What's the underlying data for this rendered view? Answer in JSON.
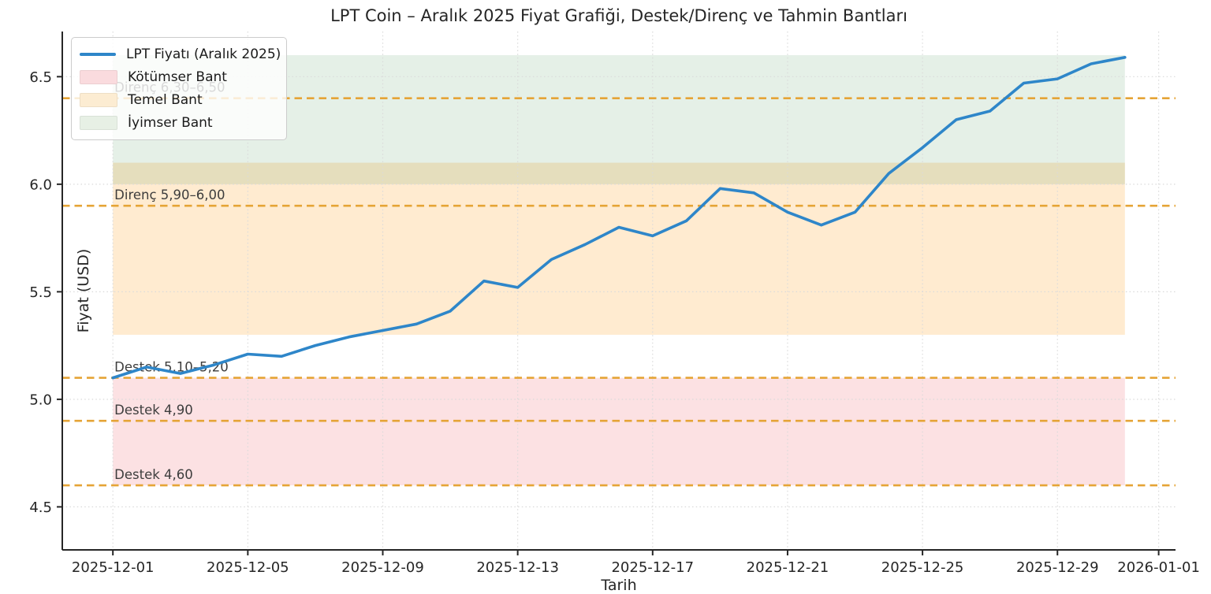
{
  "title": "LPT Coin – Aralık 2025 Fiyat Grafiği, Destek/Direnç ve Tahmin Bantları",
  "axis": {
    "xlabel": "Tarih",
    "ylabel": "Fiyat (USD)"
  },
  "legend": {
    "items": [
      {
        "label": "LPT Fiyatı (Aralık 2025)",
        "type": "line",
        "swatch": "#2e86c9"
      },
      {
        "label": "Kötümser Bant",
        "type": "patch",
        "swatch": "#fadbde"
      },
      {
        "label": "Temel Bant",
        "type": "patch",
        "swatch": "#fcecd2"
      },
      {
        "label": "İyimser Bant",
        "type": "patch",
        "swatch": "#e7f0e5"
      }
    ]
  },
  "chart_data": {
    "type": "line",
    "title": "LPT Coin – Aralık 2025 Fiyat Grafiği, Destek/Direnç ve Tahmin Bantları",
    "xlabel": "Tarih",
    "ylabel": "Fiyat (USD)",
    "x": [
      "2025-12-01",
      "2025-12-02",
      "2025-12-03",
      "2025-12-04",
      "2025-12-05",
      "2025-12-06",
      "2025-12-07",
      "2025-12-08",
      "2025-12-09",
      "2025-12-10",
      "2025-12-11",
      "2025-12-12",
      "2025-12-13",
      "2025-12-14",
      "2025-12-15",
      "2025-12-16",
      "2025-12-17",
      "2025-12-18",
      "2025-12-19",
      "2025-12-20",
      "2025-12-21",
      "2025-12-22",
      "2025-12-23",
      "2025-12-24",
      "2025-12-25",
      "2025-12-26",
      "2025-12-27",
      "2025-12-28",
      "2025-12-29",
      "2025-12-30",
      "2025-12-31"
    ],
    "series": [
      {
        "name": "LPT Fiyatı (Aralık 2025)",
        "color": "#2e86c9",
        "values": [
          5.1,
          5.15,
          5.12,
          5.16,
          5.21,
          5.2,
          5.25,
          5.29,
          5.32,
          5.35,
          5.41,
          5.55,
          5.52,
          5.65,
          5.72,
          5.8,
          5.76,
          5.83,
          5.98,
          5.96,
          5.87,
          5.81,
          5.87,
          6.05,
          6.17,
          6.3,
          6.34,
          6.47,
          6.49,
          6.56,
          6.59
        ]
      }
    ],
    "bands": [
      {
        "name": "Kötümser Bant",
        "from": 4.6,
        "to": 5.1,
        "color": "rgba(235,55,70,0.15)"
      },
      {
        "name": "Temel Bant",
        "from": 5.3,
        "to": 6.1,
        "color": "rgba(255,166,40,0.22)"
      },
      {
        "name": "İyimser Bant",
        "from": 6.0,
        "to": 6.6,
        "color": "rgba(45,130,55,0.12)"
      }
    ],
    "hlines": [
      {
        "y": 6.4,
        "label": "Direnç 6,30–6,50"
      },
      {
        "y": 5.9,
        "label": "Direnç 5,90–6,00"
      },
      {
        "y": 5.1,
        "label": "Destek 5,10–5,20"
      },
      {
        "y": 4.9,
        "label": "Destek 4,90"
      },
      {
        "y": 4.6,
        "label": "Destek 4,60"
      }
    ],
    "hline_color": "#e5a436",
    "x_ticks": [
      {
        "day": 0,
        "label": "2025-12-01"
      },
      {
        "day": 4,
        "label": "2025-12-05"
      },
      {
        "day": 8,
        "label": "2025-12-09"
      },
      {
        "day": 12,
        "label": "2025-12-13"
      },
      {
        "day": 16,
        "label": "2025-12-17"
      },
      {
        "day": 20,
        "label": "2025-12-21"
      },
      {
        "day": 24,
        "label": "2025-12-25"
      },
      {
        "day": 28,
        "label": "2025-12-29"
      },
      {
        "day": 31,
        "label": "2026-01-01"
      }
    ],
    "y_ticks": [
      {
        "v": 4.5,
        "label": "4.5"
      },
      {
        "v": 5.0,
        "label": "5.0"
      },
      {
        "v": 5.5,
        "label": "5.5"
      },
      {
        "v": 6.0,
        "label": "6.0"
      },
      {
        "v": 6.5,
        "label": "6.5"
      }
    ],
    "ylim": [
      4.3,
      6.71
    ],
    "xlim_days": [
      -1.5,
      31.5
    ],
    "grid": "dotted, both axes",
    "legend_position": "upper left"
  }
}
